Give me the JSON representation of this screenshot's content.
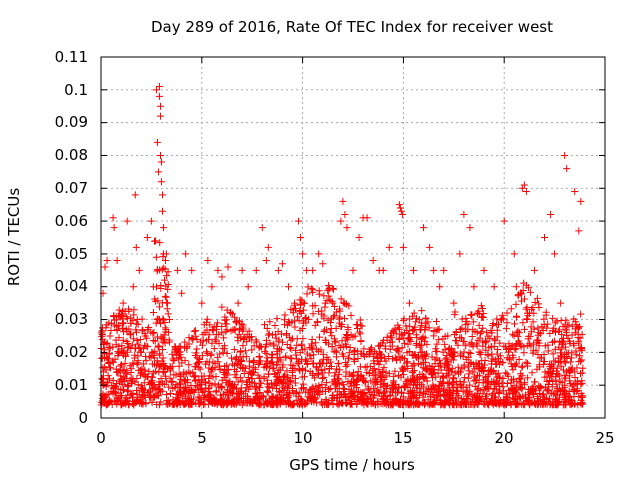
{
  "chart_data": {
    "type": "scatter",
    "title": "Day 289 of 2016, Rate Of TEC Index for receiver west",
    "xlabel": "GPS time / hours",
    "ylabel": "ROTI / TECUs",
    "xlim": [
      0,
      25
    ],
    "ylim": [
      0,
      0.11
    ],
    "grid": true,
    "marker": "+",
    "x_ticks": [
      "0",
      "5",
      "10",
      "15",
      "20",
      "25"
    ],
    "y_ticks": [
      "0",
      "0.01",
      "0.02",
      "0.03",
      "0.04",
      "0.05",
      "0.06",
      "0.07",
      "0.08",
      "0.09",
      "0.1",
      "0.11"
    ],
    "colors": {
      "series": "#ff0000",
      "frame": "#000000",
      "grid": "#a0a0a0"
    },
    "series": [
      {
        "name": "ROTI",
        "x": [
          0.05,
          0.1,
          0.15,
          0.2,
          0.3,
          0.35,
          0.45,
          0.6,
          0.65,
          0.8,
          1.0,
          1.1,
          1.3,
          1.5,
          1.6,
          1.7,
          1.75,
          1.8,
          1.9,
          2.2,
          2.3,
          2.5,
          2.6,
          2.75,
          2.8,
          2.85,
          2.9,
          2.9,
          2.95,
          2.95,
          2.95,
          3.0,
          3.0,
          3.05,
          3.05,
          3.1,
          3.1,
          3.15,
          3.2,
          3.3,
          3.4,
          3.8,
          4.0,
          4.2,
          4.5,
          5.0,
          5.3,
          5.5,
          5.8,
          6.0,
          6.3,
          6.8,
          7.0,
          7.3,
          7.7,
          8.0,
          8.2,
          8.3,
          8.8,
          9.0,
          9.3,
          9.6,
          9.8,
          9.9,
          10.0,
          10.2,
          10.5,
          10.8,
          11.0,
          11.5,
          11.9,
          12.0,
          12.1,
          12.2,
          12.5,
          12.8,
          13.0,
          13.2,
          13.5,
          13.8,
          14.0,
          14.3,
          14.8,
          14.85,
          14.9,
          14.95,
          15.0,
          15.3,
          15.5,
          16.0,
          16.3,
          16.5,
          16.8,
          17.0,
          17.5,
          17.8,
          18.0,
          18.3,
          18.5,
          19.0,
          19.5,
          20.0,
          20.5,
          20.9,
          21.0,
          21.1,
          21.5,
          22.0,
          22.3,
          22.5,
          22.8,
          23.0,
          23.1,
          23.5,
          23.7,
          23.8,
          0.5,
          1.5,
          2.0,
          2.9,
          3.3,
          5.5,
          7.5,
          9.5,
          11.5,
          13.5,
          15.5,
          17.5,
          19.5,
          21.5,
          23.5
        ],
        "y": [
          0.012,
          0.038,
          0.006,
          0.046,
          0.048,
          0.018,
          0.025,
          0.061,
          0.058,
          0.048,
          0.02,
          0.035,
          0.06,
          0.015,
          0.04,
          0.068,
          0.052,
          0.03,
          0.045,
          0.025,
          0.055,
          0.06,
          0.04,
          0.1,
          0.084,
          0.075,
          0.101,
          0.098,
          0.095,
          0.092,
          0.08,
          0.078,
          0.072,
          0.068,
          0.063,
          0.058,
          0.05,
          0.042,
          0.048,
          0.035,
          0.03,
          0.045,
          0.038,
          0.05,
          0.045,
          0.035,
          0.048,
          0.04,
          0.045,
          0.043,
          0.046,
          0.035,
          0.045,
          0.04,
          0.045,
          0.058,
          0.048,
          0.052,
          0.045,
          0.047,
          0.04,
          0.035,
          0.06,
          0.055,
          0.05,
          0.045,
          0.045,
          0.05,
          0.047,
          0.035,
          0.06,
          0.066,
          0.062,
          0.058,
          0.045,
          0.055,
          0.061,
          0.061,
          0.048,
          0.045,
          0.045,
          0.052,
          0.065,
          0.064,
          0.063,
          0.062,
          0.052,
          0.035,
          0.045,
          0.058,
          0.052,
          0.045,
          0.04,
          0.045,
          0.035,
          0.05,
          0.062,
          0.058,
          0.04,
          0.045,
          0.04,
          0.06,
          0.05,
          0.07,
          0.071,
          0.069,
          0.045,
          0.055,
          0.062,
          0.05,
          0.035,
          0.08,
          0.076,
          0.069,
          0.057,
          0.066,
          0.008,
          0.012,
          0.02,
          0.03,
          0.015,
          0.01,
          0.012,
          0.009,
          0.011,
          0.013,
          0.01,
          0.012,
          0.009,
          0.011,
          0.014
        ]
      }
    ]
  }
}
